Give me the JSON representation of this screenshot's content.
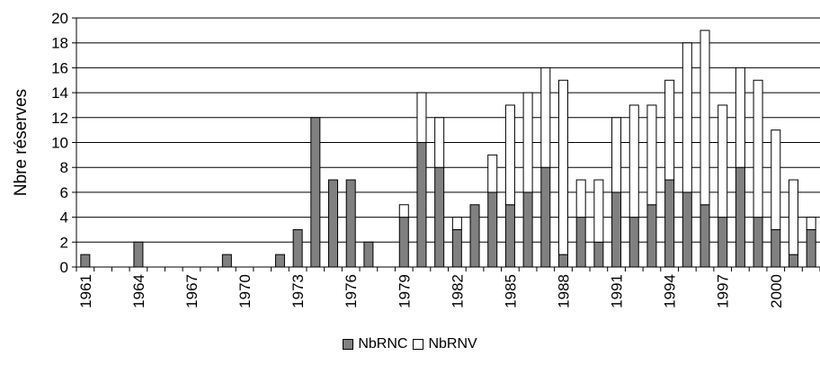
{
  "chart_data": {
    "type": "bar",
    "stacked": true,
    "ylabel": "Nbre réserves",
    "xlabel": "",
    "ylim": [
      0,
      20
    ],
    "y_ticks": [
      0,
      2,
      4,
      6,
      8,
      10,
      12,
      14,
      16,
      18,
      20
    ],
    "x_tick_labels": [
      "1961",
      "1964",
      "1967",
      "1970",
      "1973",
      "1976",
      "1979",
      "1982",
      "1985",
      "1988",
      "1991",
      "1994",
      "1997",
      "2000"
    ],
    "categories": [
      1961,
      1962,
      1963,
      1964,
      1965,
      1966,
      1967,
      1968,
      1969,
      1970,
      1971,
      1972,
      1973,
      1974,
      1975,
      1976,
      1977,
      1978,
      1979,
      1980,
      1981,
      1982,
      1983,
      1984,
      1985,
      1986,
      1987,
      1988,
      1989,
      1990,
      1991,
      1992,
      1993,
      1994,
      1995,
      1996,
      1997,
      1998,
      1999,
      2000,
      2001,
      2002
    ],
    "series": [
      {
        "name": "NbRNC",
        "color": "#808080",
        "values": [
          1,
          0,
          0,
          2,
          0,
          0,
          0,
          0,
          1,
          0,
          0,
          1,
          3,
          12,
          7,
          7,
          2,
          0,
          4,
          10,
          8,
          3,
          5,
          6,
          5,
          6,
          8,
          1,
          4,
          2,
          6,
          4,
          5,
          7,
          6,
          5,
          4,
          8,
          4,
          3,
          1,
          3
        ]
      },
      {
        "name": "NbRNV",
        "color": "#ffffff",
        "values": [
          0,
          0,
          0,
          0,
          0,
          0,
          0,
          0,
          0,
          0,
          0,
          0,
          0,
          0,
          0,
          0,
          0,
          0,
          1,
          4,
          4,
          1,
          0,
          3,
          8,
          8,
          8,
          14,
          3,
          5,
          6,
          9,
          8,
          8,
          12,
          14,
          9,
          8,
          11,
          8,
          6,
          1
        ]
      }
    ],
    "legend_position": "bottom-center",
    "grid": true
  }
}
